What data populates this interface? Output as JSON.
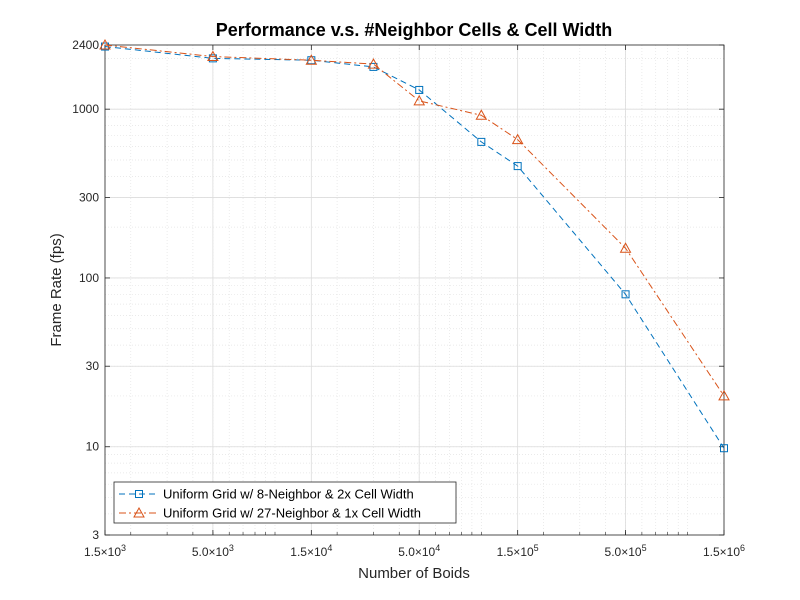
{
  "chart_data": {
    "type": "line",
    "title": "Performance v.s. #Neighbor Cells & Cell Width",
    "xlabel": "Number of Boids",
    "ylabel": "Frame Rate (fps)",
    "xscale": "log",
    "yscale": "log",
    "xlim": [
      1500,
      1500000
    ],
    "ylim": [
      3,
      2400
    ],
    "grid": true,
    "minor_grid": true,
    "legend_position": "bottom-left",
    "x_ticks": [
      {
        "value": 1500,
        "mant": "1.5",
        "exp": "3"
      },
      {
        "value": 5000,
        "mant": "5.0",
        "exp": "3"
      },
      {
        "value": 15000,
        "mant": "1.5",
        "exp": "4"
      },
      {
        "value": 50000,
        "mant": "5.0",
        "exp": "4"
      },
      {
        "value": 150000,
        "mant": "1.5",
        "exp": "5"
      },
      {
        "value": 500000,
        "mant": "5.0",
        "exp": "5"
      },
      {
        "value": 1500000,
        "mant": "1.5",
        "exp": "6"
      }
    ],
    "y_ticks": [
      {
        "value": 3,
        "label": "3"
      },
      {
        "value": 10,
        "label": "10"
      },
      {
        "value": 30,
        "label": "30"
      },
      {
        "value": 100,
        "label": "100"
      },
      {
        "value": 300,
        "label": "300"
      },
      {
        "value": 1000,
        "label": "1000"
      },
      {
        "value": 2400,
        "label": "2400"
      }
    ],
    "x": [
      1500,
      5000,
      15000,
      30000,
      50000,
      100000,
      150000,
      500000,
      1500000
    ],
    "series": [
      {
        "name": "Uniform Grid w/ 8-Neighbor & 2x Cell Width",
        "values": [
          2350,
          2000,
          1950,
          1780,
          1300,
          640,
          460,
          80,
          9.8
        ],
        "color": "#0072BD",
        "dash": "6,4",
        "marker": "square"
      },
      {
        "name": "Uniform Grid w/ 27-Neighbor & 1x Cell Width",
        "values": [
          2400,
          2050,
          1950,
          1850,
          1120,
          920,
          660,
          150,
          20
        ],
        "color": "#D95319",
        "dash": "7,3,2,3",
        "marker": "triangle"
      }
    ]
  }
}
